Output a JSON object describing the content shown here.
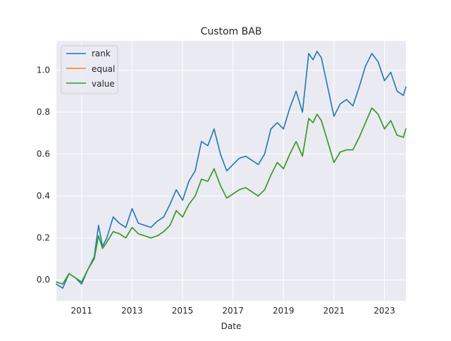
{
  "chart_data": {
    "type": "line",
    "title": "Custom BAB",
    "xlabel": "Date",
    "ylabel": "",
    "xlim": [
      2010.0,
      2023.85
    ],
    "ylim": [
      -0.1,
      1.14
    ],
    "grid": true,
    "background": "#eaeaf2",
    "legend_position": "top-left",
    "x_ticks": [
      2011,
      2013,
      2015,
      2017,
      2019,
      2021,
      2023
    ],
    "y_ticks": [
      0.0,
      0.2,
      0.4,
      0.6,
      0.8,
      1.0
    ],
    "series": [
      {
        "name": "rank",
        "color": "#1f77b4",
        "x": [
          2010.0,
          2010.25,
          2010.5,
          2010.75,
          2011.0,
          2011.25,
          2011.5,
          2011.67,
          2011.83,
          2012.0,
          2012.25,
          2012.5,
          2012.75,
          2013.0,
          2013.25,
          2013.5,
          2013.75,
          2014.0,
          2014.25,
          2014.5,
          2014.75,
          2015.0,
          2015.25,
          2015.5,
          2015.75,
          2016.0,
          2016.25,
          2016.5,
          2016.75,
          2017.0,
          2017.25,
          2017.5,
          2017.75,
          2018.0,
          2018.25,
          2018.5,
          2018.75,
          2019.0,
          2019.25,
          2019.5,
          2019.75,
          2020.0,
          2020.17,
          2020.33,
          2020.5,
          2020.75,
          2021.0,
          2021.25,
          2021.5,
          2021.75,
          2022.0,
          2022.25,
          2022.5,
          2022.75,
          2023.0,
          2023.25,
          2023.5,
          2023.75,
          2023.85
        ],
        "y": [
          -0.02,
          -0.04,
          0.03,
          0.01,
          -0.02,
          0.05,
          0.11,
          0.26,
          0.16,
          0.2,
          0.3,
          0.27,
          0.25,
          0.34,
          0.27,
          0.26,
          0.25,
          0.28,
          0.3,
          0.36,
          0.43,
          0.38,
          0.47,
          0.52,
          0.66,
          0.64,
          0.72,
          0.6,
          0.52,
          0.55,
          0.58,
          0.59,
          0.57,
          0.55,
          0.6,
          0.72,
          0.75,
          0.72,
          0.82,
          0.9,
          0.8,
          1.08,
          1.05,
          1.09,
          1.06,
          0.92,
          0.78,
          0.84,
          0.86,
          0.83,
          0.92,
          1.02,
          1.08,
          1.04,
          0.95,
          0.99,
          0.9,
          0.88,
          0.92
        ]
      },
      {
        "name": "equal",
        "color": "#ff7f0e",
        "x": [
          2010.0,
          2010.25,
          2010.5,
          2010.75,
          2011.0,
          2011.25,
          2011.5,
          2011.67,
          2011.83,
          2012.0,
          2012.25,
          2012.5,
          2012.75,
          2013.0,
          2013.25,
          2013.5,
          2013.75,
          2014.0,
          2014.25,
          2014.5,
          2014.75,
          2015.0,
          2015.25,
          2015.5,
          2015.75,
          2016.0,
          2016.25,
          2016.5,
          2016.75,
          2017.0,
          2017.25,
          2017.5,
          2017.75,
          2018.0,
          2018.25,
          2018.5,
          2018.75,
          2019.0,
          2019.25,
          2019.5,
          2019.75,
          2020.0,
          2020.17,
          2020.33,
          2020.5,
          2020.75,
          2021.0,
          2021.25,
          2021.5,
          2021.75,
          2022.0,
          2022.25,
          2022.5,
          2022.75,
          2023.0,
          2023.25,
          2023.5,
          2023.75,
          2023.85
        ],
        "y": [
          -0.01,
          -0.02,
          0.03,
          0.01,
          -0.01,
          0.05,
          0.1,
          0.21,
          0.15,
          0.18,
          0.23,
          0.22,
          0.2,
          0.25,
          0.22,
          0.21,
          0.2,
          0.21,
          0.23,
          0.26,
          0.33,
          0.3,
          0.36,
          0.4,
          0.48,
          0.47,
          0.53,
          0.45,
          0.39,
          0.41,
          0.43,
          0.44,
          0.42,
          0.4,
          0.43,
          0.5,
          0.56,
          0.53,
          0.6,
          0.66,
          0.59,
          0.77,
          0.75,
          0.79,
          0.76,
          0.66,
          0.56,
          0.61,
          0.62,
          0.62,
          0.68,
          0.75,
          0.82,
          0.79,
          0.72,
          0.76,
          0.69,
          0.68,
          0.72
        ]
      },
      {
        "name": "value",
        "color": "#2ca02c",
        "x": [
          2010.0,
          2010.25,
          2010.5,
          2010.75,
          2011.0,
          2011.25,
          2011.5,
          2011.67,
          2011.83,
          2012.0,
          2012.25,
          2012.5,
          2012.75,
          2013.0,
          2013.25,
          2013.5,
          2013.75,
          2014.0,
          2014.25,
          2014.5,
          2014.75,
          2015.0,
          2015.25,
          2015.5,
          2015.75,
          2016.0,
          2016.25,
          2016.5,
          2016.75,
          2017.0,
          2017.25,
          2017.5,
          2017.75,
          2018.0,
          2018.25,
          2018.5,
          2018.75,
          2019.0,
          2019.25,
          2019.5,
          2019.75,
          2020.0,
          2020.17,
          2020.33,
          2020.5,
          2020.75,
          2021.0,
          2021.25,
          2021.5,
          2021.75,
          2022.0,
          2022.25,
          2022.5,
          2022.75,
          2023.0,
          2023.25,
          2023.5,
          2023.75,
          2023.85
        ],
        "y": [
          -0.01,
          -0.02,
          0.03,
          0.01,
          -0.01,
          0.05,
          0.1,
          0.21,
          0.15,
          0.18,
          0.23,
          0.22,
          0.2,
          0.25,
          0.22,
          0.21,
          0.2,
          0.21,
          0.23,
          0.26,
          0.33,
          0.3,
          0.36,
          0.4,
          0.48,
          0.47,
          0.53,
          0.45,
          0.39,
          0.41,
          0.43,
          0.44,
          0.42,
          0.4,
          0.43,
          0.5,
          0.56,
          0.53,
          0.6,
          0.66,
          0.59,
          0.77,
          0.75,
          0.79,
          0.76,
          0.66,
          0.56,
          0.61,
          0.62,
          0.62,
          0.68,
          0.75,
          0.82,
          0.79,
          0.72,
          0.76,
          0.69,
          0.68,
          0.72
        ]
      }
    ]
  }
}
